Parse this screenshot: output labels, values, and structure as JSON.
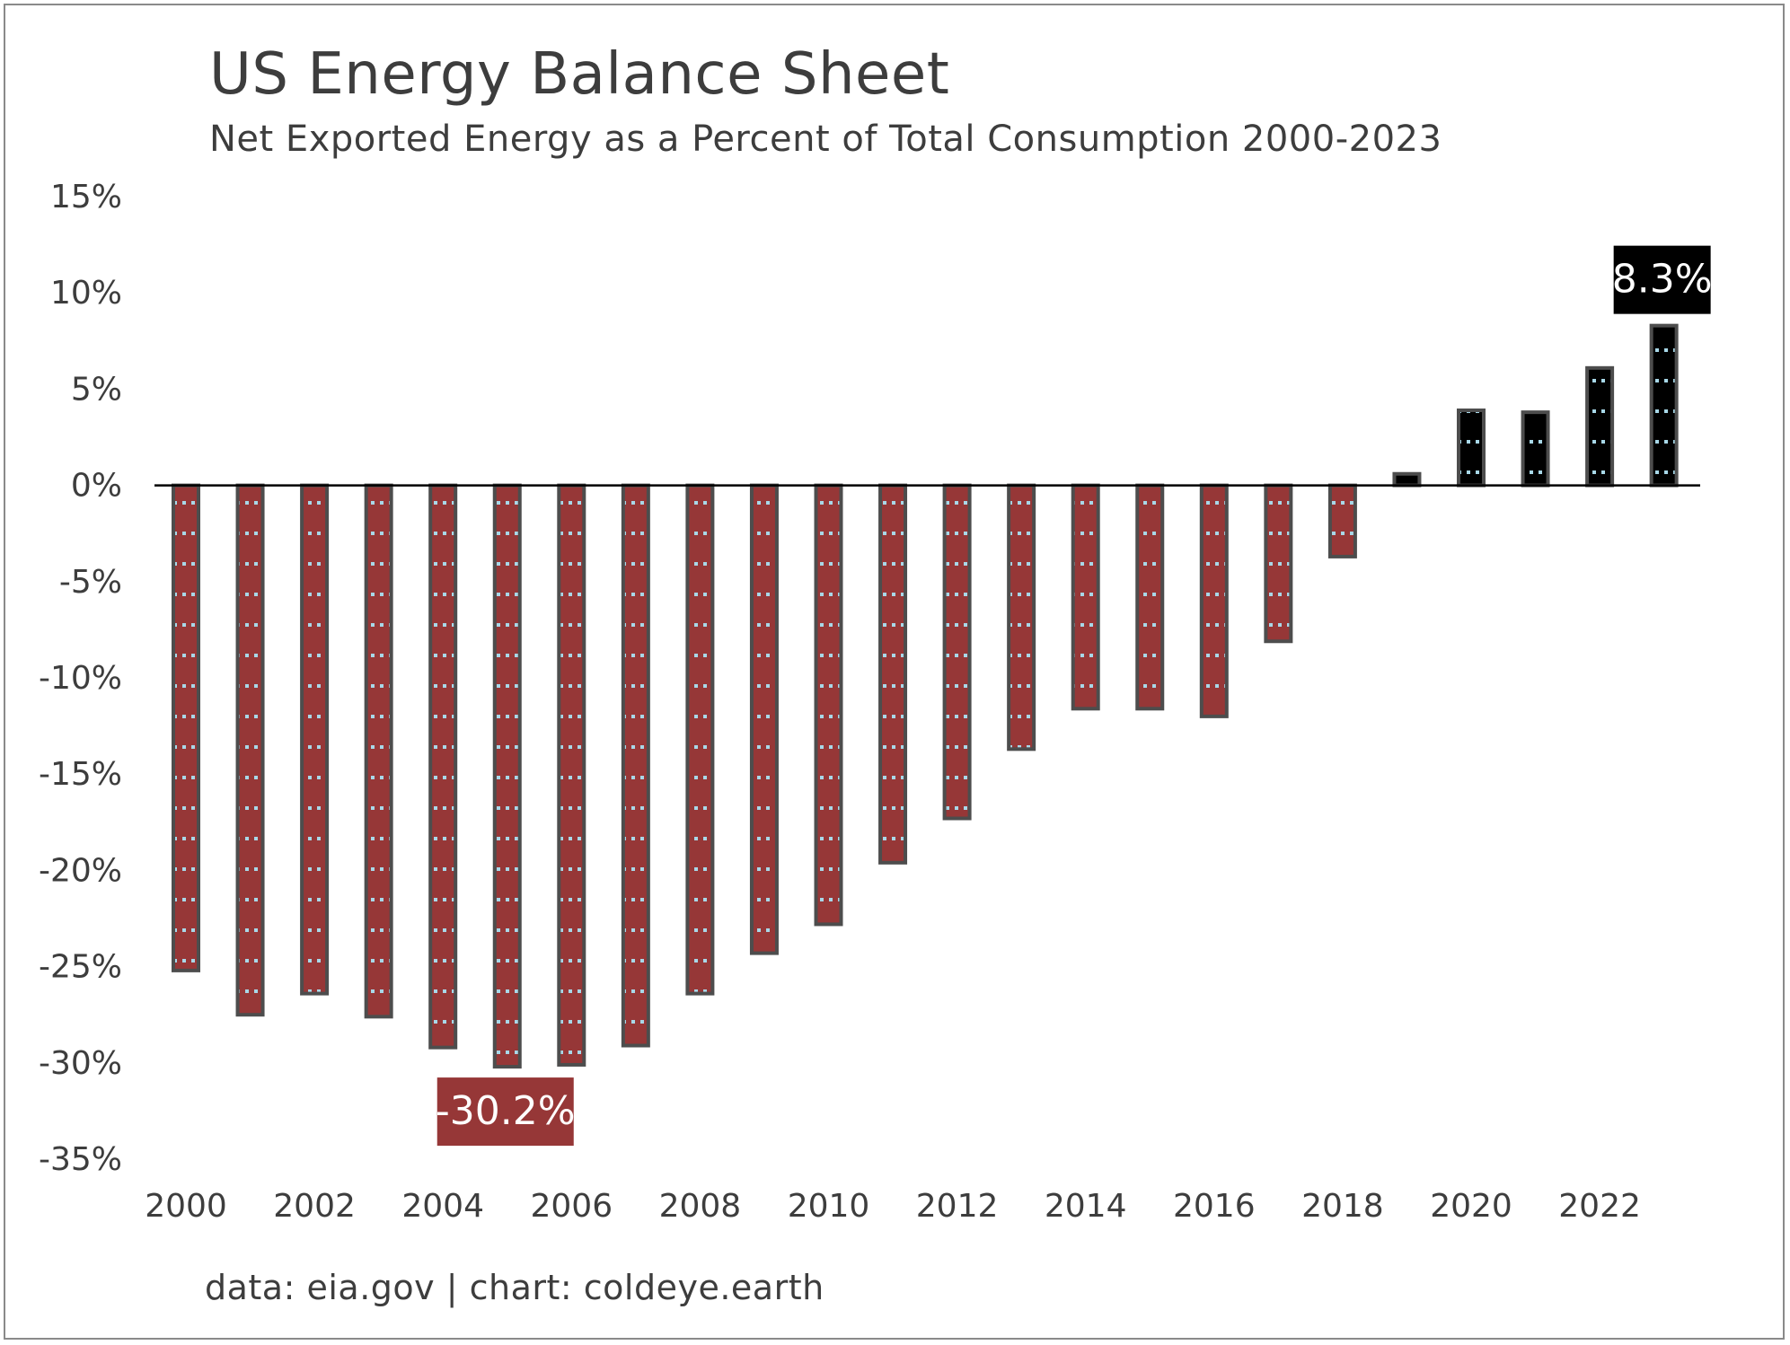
{
  "chart_data": {
    "type": "bar",
    "title": "US Energy Balance Sheet",
    "subtitle": "Net Exported Energy as a Percent of Total Consumption 2000-2023",
    "source": "data: eia.gov | chart: coldeye.earth",
    "xlabel": "",
    "ylabel": "",
    "ylim": [
      -35,
      15
    ],
    "yticks": [
      15,
      10,
      5,
      0,
      -5,
      -10,
      -15,
      -20,
      -25,
      -30,
      -35
    ],
    "ytick_labels": [
      "15%",
      "10%",
      "5%",
      "0%",
      "-5%",
      "-10%",
      "-15%",
      "-20%",
      "-25%",
      "-30%",
      "-35%"
    ],
    "categories": [
      2000,
      2001,
      2002,
      2003,
      2004,
      2005,
      2006,
      2007,
      2008,
      2009,
      2010,
      2011,
      2012,
      2013,
      2014,
      2015,
      2016,
      2017,
      2018,
      2019,
      2020,
      2021,
      2022,
      2023
    ],
    "xtick_labels": [
      "2000",
      "2002",
      "2004",
      "2006",
      "2008",
      "2010",
      "2012",
      "2014",
      "2016",
      "2018",
      "2020",
      "2022"
    ],
    "values": [
      -25.2,
      -27.5,
      -26.4,
      -27.6,
      -29.2,
      -30.2,
      -30.1,
      -29.1,
      -26.4,
      -24.3,
      -22.8,
      -19.6,
      -17.3,
      -13.7,
      -11.6,
      -11.6,
      -12.0,
      -8.1,
      -3.7,
      0.6,
      3.9,
      3.8,
      6.1,
      8.3
    ],
    "grid": false,
    "legend": "none",
    "colors": {
      "negative": "#963737",
      "positive": "#000000",
      "bar_outline": "#4d4d4d",
      "dots": "#a8d8e8",
      "text": "#3d3d3d"
    },
    "annotations": [
      {
        "category": 2005,
        "label": "-30.2%",
        "color": "#963737"
      },
      {
        "category": 2023,
        "label": "8.3%",
        "color": "#000000"
      }
    ]
  }
}
